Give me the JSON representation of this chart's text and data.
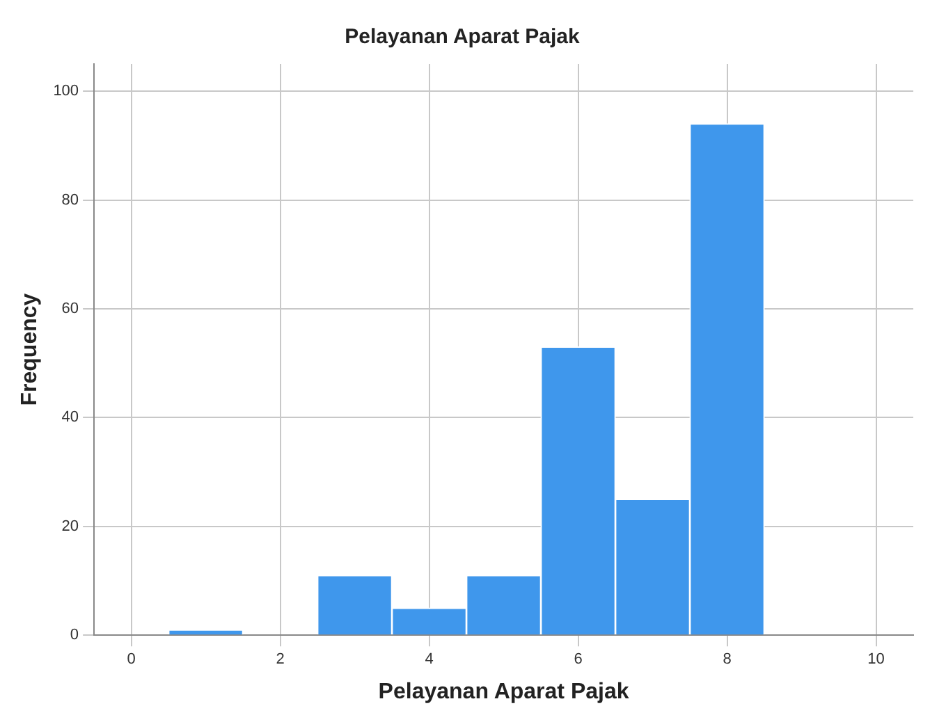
{
  "chart_data": {
    "type": "histogram",
    "title": "Pelayanan Aparat Pajak",
    "xlabel": "Pelayanan Aparat Pajak",
    "ylabel": "Frequency",
    "bins": [
      0.5,
      1.5,
      2.5,
      3.5,
      4.5,
      5.5,
      6.5,
      7.5,
      8.5
    ],
    "values": [
      1,
      0,
      11,
      5,
      11,
      53,
      25,
      94
    ],
    "color": "#3f97ec",
    "xlim": [
      -0.5,
      10.5
    ],
    "xticks": [
      0,
      2,
      4,
      6,
      8,
      10
    ],
    "ylim": [
      0,
      105
    ],
    "yticks": [
      0,
      20,
      40,
      60,
      80,
      100
    ],
    "grid": true,
    "legend": false
  }
}
